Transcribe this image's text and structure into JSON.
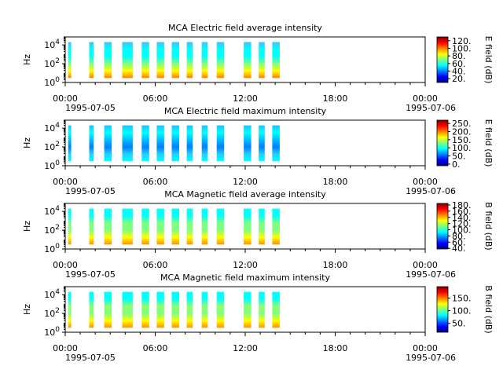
{
  "chart_data": [
    {
      "type": "heatmap",
      "title": "MCA  Electric field average intensity",
      "ylabel": "Hz",
      "y_scale": "log",
      "y_ticks": [
        "10^0",
        "10^2",
        "10^4"
      ],
      "x_ticks": [
        "00:00",
        "06:00",
        "12:00",
        "18:00",
        "00:00"
      ],
      "x_dates": [
        "1995-07-05",
        "1995-07-06"
      ],
      "colorbar_label": "E field (dB)",
      "colorbar_ticks": [
        "120.",
        "100.",
        "80.",
        "60.",
        "40.",
        "20."
      ],
      "colorbar_range": [
        10,
        130
      ],
      "data_intervals_h": [
        [
          0.1,
          0.4
        ],
        [
          1.6,
          1.9
        ],
        [
          2.6,
          3.1
        ],
        [
          3.8,
          4.5
        ],
        [
          5.1,
          5.6
        ],
        [
          6.1,
          6.6
        ],
        [
          7.1,
          7.6
        ],
        [
          8.1,
          8.5
        ],
        [
          9.1,
          9.5
        ],
        [
          10.1,
          10.6
        ],
        [
          11.9,
          12.4
        ],
        [
          12.9,
          13.3
        ],
        [
          13.8,
          14.3
        ]
      ],
      "freq_range_hz": [
        3,
        20000
      ]
    },
    {
      "type": "heatmap",
      "title": "MCA  Electric field maximum intensity",
      "ylabel": "Hz",
      "y_scale": "log",
      "y_ticks": [
        "10^0",
        "10^2",
        "10^4"
      ],
      "x_ticks": [
        "00:00",
        "06:00",
        "12:00",
        "18:00",
        "00:00"
      ],
      "x_dates": [
        "1995-07-05",
        "1995-07-06"
      ],
      "colorbar_label": "E field (dB)",
      "colorbar_ticks": [
        "250.",
        "200.",
        "150.",
        "100.",
        "50.",
        "0."
      ],
      "colorbar_range": [
        -10,
        270
      ],
      "data_intervals_h": [
        [
          0.1,
          0.4
        ],
        [
          1.6,
          1.9
        ],
        [
          2.6,
          3.1
        ],
        [
          3.8,
          4.5
        ],
        [
          5.1,
          5.6
        ],
        [
          6.1,
          6.6
        ],
        [
          7.1,
          7.6
        ],
        [
          8.1,
          8.5
        ],
        [
          9.1,
          9.5
        ],
        [
          10.1,
          10.6
        ],
        [
          11.9,
          12.4
        ],
        [
          12.9,
          13.3
        ],
        [
          13.8,
          14.3
        ]
      ],
      "freq_range_hz": [
        3,
        20000
      ]
    },
    {
      "type": "heatmap",
      "title": "MCA  Magnetic field average intensity",
      "ylabel": "Hz",
      "y_scale": "log",
      "y_ticks": [
        "10^0",
        "10^2",
        "10^4"
      ],
      "x_ticks": [
        "00:00",
        "06:00",
        "12:00",
        "18:00",
        "00:00"
      ],
      "x_dates": [
        "1995-07-05",
        "1995-07-06"
      ],
      "colorbar_label": "B field (dB)",
      "colorbar_ticks": [
        "180.",
        "160.",
        "140.",
        "120.",
        "100.",
        "80.",
        "60.",
        "40."
      ],
      "colorbar_range": [
        38,
        185
      ],
      "data_intervals_h": [
        [
          0.1,
          0.4
        ],
        [
          1.6,
          1.9
        ],
        [
          2.6,
          3.1
        ],
        [
          3.8,
          4.5
        ],
        [
          5.1,
          5.6
        ],
        [
          6.1,
          6.6
        ],
        [
          7.1,
          7.6
        ],
        [
          8.1,
          8.5
        ],
        [
          9.1,
          9.5
        ],
        [
          10.1,
          10.6
        ],
        [
          11.9,
          12.4
        ],
        [
          12.9,
          13.3
        ],
        [
          13.8,
          14.3
        ]
      ],
      "freq_range_hz": [
        3,
        20000
      ]
    },
    {
      "type": "heatmap",
      "title": "MCA  Magnetic field maximum intensity",
      "ylabel": "Hz",
      "y_scale": "log",
      "y_ticks": [
        "10^0",
        "10^2",
        "10^4"
      ],
      "x_ticks": [
        "00:00",
        "06:00",
        "12:00",
        "18:00",
        "00:00"
      ],
      "x_dates": [
        "1995-07-05",
        "1995-07-06"
      ],
      "colorbar_label": "B field (dB)",
      "colorbar_ticks": [
        "150.",
        "100.",
        "50."
      ],
      "colorbar_range": [
        15,
        195
      ],
      "data_intervals_h": [
        [
          0.1,
          0.4
        ],
        [
          1.6,
          1.9
        ],
        [
          2.6,
          3.1
        ],
        [
          3.8,
          4.5
        ],
        [
          5.1,
          5.6
        ],
        [
          6.1,
          6.6
        ],
        [
          7.1,
          7.6
        ],
        [
          8.1,
          8.5
        ],
        [
          9.1,
          9.5
        ],
        [
          10.1,
          10.6
        ],
        [
          11.9,
          12.4
        ],
        [
          12.9,
          13.3
        ],
        [
          13.8,
          14.3
        ]
      ],
      "freq_range_hz": [
        3,
        20000
      ]
    }
  ]
}
